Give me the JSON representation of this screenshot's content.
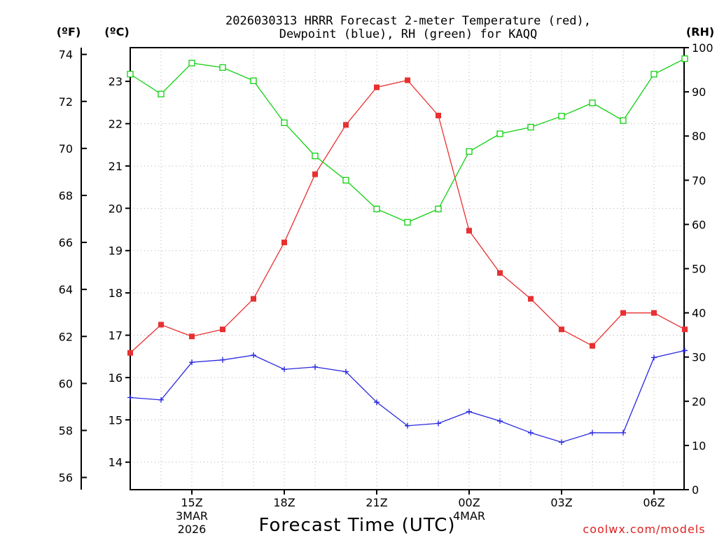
{
  "chart_data": {
    "type": "line",
    "title_line1": "2026030313 HRRR Forecast 2-meter Temperature (red),",
    "title_line2": "Dewpoint (blue), RH (green) for KAQQ",
    "xlabel": "Forecast Time (UTC)",
    "credit": "coolwx.com/models",
    "left_unit_f": "(ºF)",
    "left_unit_c": "(ºC)",
    "right_unit": "(RH)",
    "x_hours": [
      0,
      1,
      2,
      3,
      4,
      5,
      6,
      7,
      8,
      9,
      10,
      11,
      12,
      13,
      14,
      15,
      16,
      17,
      18
    ],
    "x_ticks": [
      {
        "hour": 2,
        "label": "15Z",
        "sub1": "3MAR",
        "sub2": "2026"
      },
      {
        "hour": 5,
        "label": "18Z",
        "sub1": "",
        "sub2": ""
      },
      {
        "hour": 8,
        "label": "21Z",
        "sub1": "",
        "sub2": ""
      },
      {
        "hour": 11,
        "label": "00Z",
        "sub1": "4MAR",
        "sub2": ""
      },
      {
        "hour": 14,
        "label": "03Z",
        "sub1": "",
        "sub2": ""
      },
      {
        "hour": 17,
        "label": "06Z",
        "sub1": "",
        "sub2": ""
      }
    ],
    "f_axis": {
      "ylim": [
        56,
        74
      ],
      "ticks": [
        "56",
        "58",
        "60",
        "62",
        "64",
        "66",
        "68",
        "70",
        "72",
        "74"
      ]
    },
    "c_axis": {
      "ticks": [
        "14",
        "15",
        "16",
        "17",
        "18",
        "19",
        "20",
        "21",
        "22",
        "23"
      ]
    },
    "rh_axis": {
      "ylim": [
        0,
        100
      ],
      "ticks": [
        "0",
        "10",
        "20",
        "30",
        "40",
        "50",
        "60",
        "70",
        "80",
        "90",
        "100"
      ]
    },
    "series": [
      {
        "name": "Temperature",
        "unit": "F",
        "color": "#e83030",
        "marker": "filled-square",
        "values": [
          61.3,
          62.5,
          62.0,
          62.3,
          63.6,
          66.0,
          68.9,
          71.0,
          72.6,
          72.9,
          71.4,
          66.5,
          64.7,
          63.6,
          62.3,
          61.6,
          63.0,
          63.0,
          62.3
        ]
      },
      {
        "name": "Dewpoint",
        "unit": "F",
        "color": "#2828e0",
        "marker": "plus",
        "values": [
          59.4,
          59.3,
          60.9,
          61.0,
          61.2,
          60.6,
          60.7,
          60.5,
          59.2,
          58.2,
          58.3,
          58.8,
          58.4,
          57.9,
          57.5,
          57.9,
          57.9,
          61.1,
          61.4
        ]
      },
      {
        "name": "RH",
        "unit": "%",
        "color": "#10d010",
        "marker": "open-square",
        "values": [
          94,
          89.5,
          96.5,
          95.5,
          92.5,
          83,
          75.5,
          70,
          63.5,
          60.5,
          63.5,
          76.5,
          80.5,
          82,
          84.5,
          87.5,
          83.5,
          94,
          97.5
        ]
      }
    ]
  }
}
